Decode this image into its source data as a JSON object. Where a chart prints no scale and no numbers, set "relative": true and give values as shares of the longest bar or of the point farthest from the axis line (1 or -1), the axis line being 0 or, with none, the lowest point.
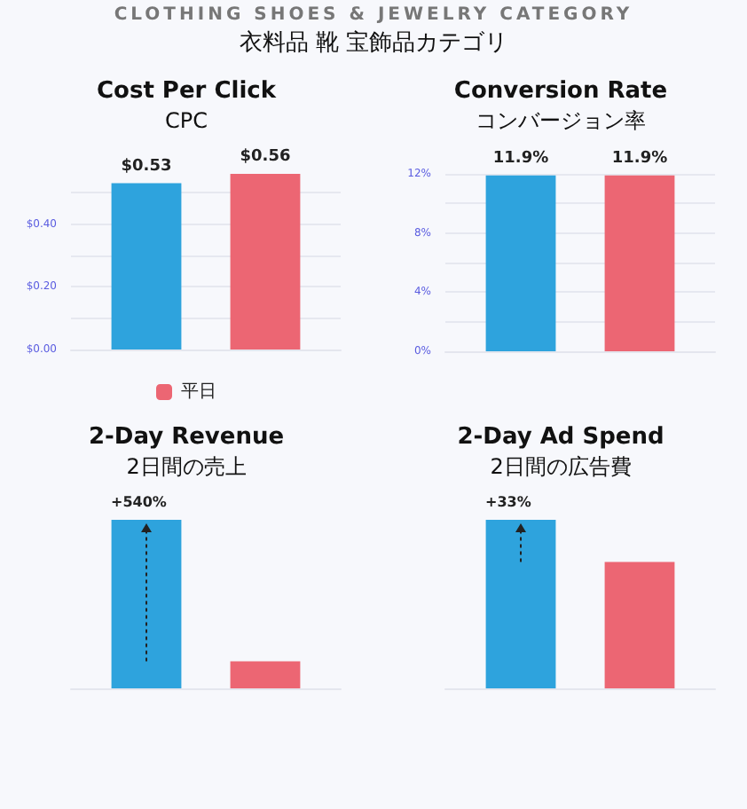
{
  "chart_data": [
    {
      "type": "other",
      "title": "CLOTHING SHOES & JEWELRY CATEGORY",
      "subtitle": "衣料品 靴 宝飾品カテゴリ"
    },
    {
      "type": "bar",
      "title": "Cost Per Click",
      "subtitle": "CPC",
      "categories": [
        null
      ],
      "ylim": [
        0,
        0.56
      ],
      "yticks": [
        {
          "value": 0,
          "label": "$0.00"
        },
        {
          "value": 0.1,
          "label": null
        },
        {
          "value": 0.2,
          "label": "$0.20"
        },
        {
          "value": 0.3,
          "label": null
        },
        {
          "value": 0.4,
          "label": "$0.40"
        },
        {
          "value": 0.5,
          "label": null
        }
      ],
      "grid": "y",
      "tick_labels": "y",
      "legend": "bottom",
      "series": [
        {
          "color": "#2ea3dd",
          "values": [
            0.53
          ],
          "value_labels": [
            "$0.53"
          ]
        },
        {
          "name": "平日",
          "color": "#ec6673",
          "values": [
            0.56
          ],
          "value_labels": [
            "$0.56"
          ]
        }
      ]
    },
    {
      "type": "bar",
      "title": "Conversion Rate",
      "subtitle": "コンバージョン率",
      "categories": [
        null
      ],
      "ylim": [
        0,
        12
      ],
      "yticks": [
        {
          "value": 0,
          "label": "0%"
        },
        {
          "value": 2,
          "label": null
        },
        {
          "value": 4,
          "label": "4%"
        },
        {
          "value": 6,
          "label": null
        },
        {
          "value": 8,
          "label": "8%"
        },
        {
          "value": 10,
          "label": null
        },
        {
          "value": 12,
          "label": "12%"
        }
      ],
      "grid": "y",
      "tick_labels": "y",
      "series": [
        {
          "color": "#2ea3dd",
          "values": [
            11.9
          ],
          "value_labels": [
            "11.9%"
          ]
        },
        {
          "color": "#ec6673",
          "values": [
            11.9
          ],
          "value_labels": [
            "11.9%"
          ]
        }
      ]
    },
    {
      "type": "bar",
      "title": "2-Day Revenue",
      "subtitle": "2日間の売上",
      "categories": [
        null
      ],
      "relative": true,
      "tick_labels": false,
      "annotations": [
        {
          "text": "+540%",
          "y": 1
        }
      ],
      "series": [
        {
          "color": "#2ea3dd",
          "values": [
            1
          ]
        },
        {
          "color": "#ec6673",
          "values": [
            0.16
          ]
        }
      ]
    },
    {
      "type": "bar",
      "title": "2-Day Ad Spend",
      "subtitle": "2日間の広告費",
      "categories": [
        null
      ],
      "relative": true,
      "tick_labels": false,
      "annotations": [
        {
          "text": "+33%",
          "y": 1
        }
      ],
      "series": [
        {
          "color": "#2ea3dd",
          "values": [
            1
          ]
        },
        {
          "color": "#ec6673",
          "values": [
            0.75
          ]
        }
      ]
    }
  ]
}
